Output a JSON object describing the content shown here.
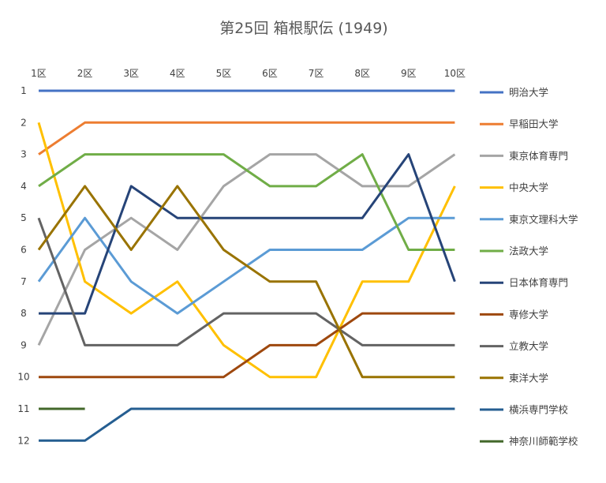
{
  "chart_data": {
    "type": "line",
    "title": "第25回 箱根駅伝 (1949)",
    "x": [
      "1区",
      "2区",
      "3区",
      "4区",
      "5区",
      "6区",
      "7区",
      "8区",
      "9区",
      "10区"
    ],
    "y_ticks": [
      "1",
      "2",
      "3",
      "4",
      "5",
      "6",
      "7",
      "8",
      "9",
      "10",
      "11",
      "12"
    ],
    "ylim": [
      1,
      12
    ],
    "y_reversed": true,
    "grid": false,
    "legend_position": "right",
    "series": [
      {
        "name": "明治大学",
        "color": "#4472C4",
        "values": [
          1,
          1,
          1,
          1,
          1,
          1,
          1,
          1,
          1,
          1
        ]
      },
      {
        "name": "早稲田大学",
        "color": "#ED7D31",
        "values": [
          3,
          2,
          2,
          2,
          2,
          2,
          2,
          2,
          2,
          2
        ]
      },
      {
        "name": "東京体育専門",
        "color": "#A5A5A5",
        "values": [
          9,
          6,
          5,
          6,
          4,
          3,
          3,
          4,
          4,
          3
        ]
      },
      {
        "name": "中央大学",
        "color": "#FFC000",
        "values": [
          2,
          7,
          8,
          7,
          9,
          10,
          10,
          7,
          7,
          4
        ]
      },
      {
        "name": "東京文理科大学",
        "color": "#5B9BD5",
        "values": [
          7,
          5,
          7,
          8,
          7,
          6,
          6,
          6,
          5,
          5
        ]
      },
      {
        "name": "法政大学",
        "color": "#70AD47",
        "values": [
          4,
          3,
          3,
          3,
          3,
          4,
          4,
          3,
          6,
          6
        ]
      },
      {
        "name": "日本体育専門",
        "color": "#264478",
        "values": [
          8,
          8,
          4,
          5,
          5,
          5,
          5,
          5,
          3,
          7
        ]
      },
      {
        "name": "専修大学",
        "color": "#9E480E",
        "values": [
          10,
          10,
          10,
          10,
          10,
          9,
          9,
          8,
          8,
          8
        ]
      },
      {
        "name": "立教大学",
        "color": "#636363",
        "values": [
          5,
          9,
          9,
          9,
          8,
          8,
          8,
          9,
          9,
          9
        ]
      },
      {
        "name": "東洋大学",
        "color": "#997300",
        "values": [
          6,
          4,
          6,
          4,
          6,
          7,
          7,
          10,
          10,
          10
        ]
      },
      {
        "name": "横浜専門学校",
        "color": "#255E91",
        "values": [
          12,
          12,
          11,
          11,
          11,
          11,
          11,
          11,
          11,
          11
        ]
      },
      {
        "name": "神奈川師範学校",
        "color": "#43682B",
        "values": [
          11,
          11,
          null,
          null,
          null,
          null,
          null,
          null,
          null,
          null
        ]
      }
    ]
  }
}
